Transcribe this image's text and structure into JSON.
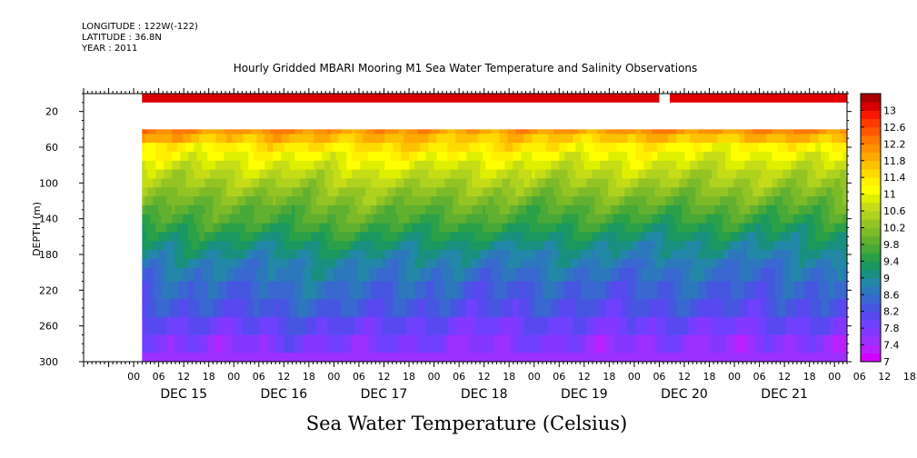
{
  "header": {
    "longitude": "LONGITUDE : 122W(-122)",
    "latitude": "LATITUDE : 36.8N",
    "year": "YEAR : 2011"
  },
  "chart_data": {
    "type": "heatmap",
    "title": "Hourly Gridded MBARI Mooring M1 Sea Water Temperature and Salinity Observations",
    "xlabel": "Sea Water Temperature (Celsius)",
    "ylabel": "DEPTH (m)",
    "ylim": [
      300,
      0
    ],
    "yticks": [
      20,
      60,
      100,
      140,
      180,
      220,
      260,
      300
    ],
    "x_hour_ticks": [
      "00",
      "06",
      "12",
      "18",
      "00",
      "06",
      "12",
      "18",
      "00",
      "06",
      "12",
      "18",
      "00",
      "06",
      "12",
      "18",
      "00",
      "06",
      "12",
      "18",
      "00",
      "06",
      "12",
      "18",
      "00",
      "06",
      "12",
      "18",
      "00",
      "06",
      "12",
      "18"
    ],
    "x_day_labels": [
      "DEC 15",
      "DEC 16",
      "DEC 17",
      "DEC 18",
      "DEC 19",
      "DEC 20",
      "DEC 21"
    ],
    "x_range_hours": {
      "start": "DEC 14 22:00",
      "end": "DEC 21 21:00"
    },
    "colorbar": {
      "levels": [
        7,
        7.2,
        7.4,
        7.6,
        7.8,
        8,
        8.2,
        8.4,
        8.6,
        8.8,
        9,
        9.2,
        9.4,
        9.6,
        9.8,
        10,
        10.2,
        10.4,
        10.6,
        10.8,
        11,
        11.2,
        11.4,
        11.6,
        11.8,
        12,
        12.2,
        12.4,
        12.6,
        12.8,
        13,
        13.2
      ],
      "labels": [
        "7",
        "7.4",
        "7.8",
        "8.2",
        "8.6",
        "9",
        "9.4",
        "9.8",
        "10.2",
        "10.6",
        "11",
        "11.4",
        "11.8",
        "12.2",
        "12.6",
        "13"
      ],
      "colors": [
        "#d400ff",
        "#b820ff",
        "#9b30ff",
        "#8438ff",
        "#7040ff",
        "#5848f0",
        "#4656e0",
        "#3868d0",
        "#2d78bc",
        "#2387a8",
        "#198f80",
        "#1a9860",
        "#2aa048",
        "#48a838",
        "#62b030",
        "#7cba28",
        "#94c424",
        "#aed21e",
        "#c6dc16",
        "#def000",
        "#ffff00",
        "#fff000",
        "#ffda00",
        "#ffc000",
        "#ffa800",
        "#ff9000",
        "#ff7800",
        "#ff5800",
        "#ff3a00",
        "#f81800",
        "#d80000",
        "#a80000"
      ]
    },
    "depth_levels": [
      10,
      40,
      50,
      60,
      70,
      80,
      90,
      100,
      110,
      120,
      130,
      140,
      150,
      160,
      170,
      180,
      190,
      200,
      220,
      240,
      260,
      280,
      300
    ],
    "time_hours": [
      2,
      26,
      50,
      74,
      98,
      122,
      146,
      170
    ],
    "profiles": [
      [
        12.9,
        12.2,
        11.9,
        11.2,
        11.1,
        10.8,
        10.6,
        10.5,
        10.3,
        10.2,
        10.0,
        9.8,
        9.6,
        9.4,
        9.2,
        9.0,
        8.8,
        8.6,
        8.4,
        8.2,
        7.9,
        7.6,
        7.4
      ],
      [
        12.9,
        12.1,
        11.7,
        11.3,
        11.0,
        10.8,
        10.6,
        10.4,
        10.2,
        10.0,
        9.8,
        9.7,
        9.5,
        9.3,
        9.1,
        9.0,
        8.8,
        8.7,
        8.5,
        8.3,
        8.0,
        7.7,
        7.5
      ],
      [
        12.9,
        12.1,
        11.8,
        11.4,
        11.1,
        10.9,
        10.7,
        10.5,
        10.3,
        10.2,
        10.0,
        9.9,
        9.7,
        9.5,
        9.3,
        9.1,
        8.9,
        8.8,
        8.6,
        8.4,
        8.1,
        7.8,
        7.5
      ],
      [
        12.9,
        12.0,
        11.7,
        11.5,
        11.2,
        10.9,
        10.7,
        10.5,
        10.3,
        10.1,
        9.9,
        9.7,
        9.5,
        9.3,
        9.1,
        8.9,
        8.8,
        8.6,
        8.4,
        8.2,
        7.9,
        7.7,
        7.5
      ],
      [
        12.9,
        12.0,
        11.6,
        11.3,
        11.0,
        10.8,
        10.6,
        10.4,
        10.2,
        10.0,
        9.8,
        9.7,
        9.5,
        9.3,
        9.1,
        8.9,
        8.8,
        8.6,
        8.4,
        8.2,
        7.9,
        7.7,
        7.5
      ],
      [
        12.9,
        12.1,
        11.7,
        11.2,
        11.0,
        10.8,
        10.6,
        10.4,
        10.2,
        10.0,
        9.8,
        9.6,
        9.4,
        9.2,
        9.0,
        8.9,
        8.7,
        8.6,
        8.4,
        8.2,
        7.9,
        7.6,
        7.4
      ],
      [
        12.9,
        12.1,
        11.7,
        11.1,
        10.9,
        10.7,
        10.5,
        10.4,
        10.2,
        10.0,
        9.8,
        9.6,
        9.4,
        9.2,
        9.0,
        8.9,
        8.7,
        8.6,
        8.4,
        8.2,
        7.9,
        7.6,
        7.4
      ],
      [
        12.9,
        12.2,
        11.8,
        11.3,
        11.0,
        10.8,
        10.6,
        10.4,
        10.2,
        10.0,
        9.8,
        9.6,
        9.4,
        9.2,
        9.1,
        8.9,
        8.8,
        8.6,
        8.4,
        8.2,
        7.9,
        7.6,
        7.4
      ]
    ]
  }
}
